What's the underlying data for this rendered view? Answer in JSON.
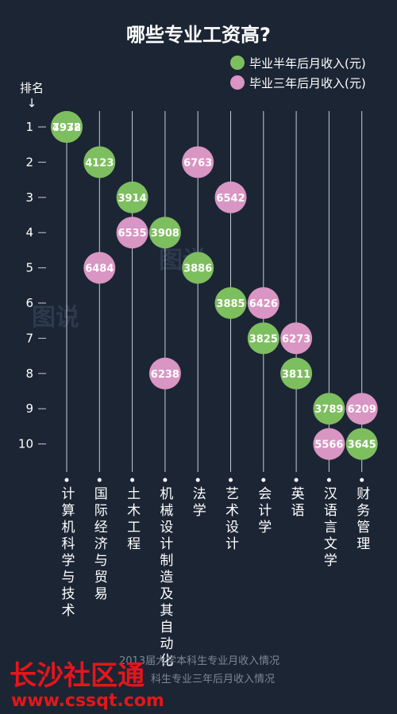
{
  "chart_data": {
    "type": "scatter",
    "title": "哪些专业工资高?",
    "rank_axis_label": "排名",
    "rank_axis_arrow": "↓",
    "ranks": [
      1,
      2,
      3,
      4,
      5,
      6,
      7,
      8,
      9,
      10
    ],
    "categories": [
      "计算机科学与技术",
      "国际经济与贸易",
      "土木工程",
      "机械设计制造及其自动化",
      "法学",
      "艺术设计",
      "会计学",
      "英语",
      "汉语言文学",
      "财务管理"
    ],
    "series": [
      {
        "name": "毕业半年后月收入(元)",
        "color": "#7dbe5f",
        "points": [
          {
            "category": "计算机科学与技术",
            "rank": 1,
            "value": 4978
          },
          {
            "category": "国际经济与贸易",
            "rank": 2,
            "value": 4123
          },
          {
            "category": "土木工程",
            "rank": 3,
            "value": 3914
          },
          {
            "category": "机械设计制造及其自动化",
            "rank": 4,
            "value": 3908
          },
          {
            "category": "法学",
            "rank": 5,
            "value": 3886
          },
          {
            "category": "艺术设计",
            "rank": 6,
            "value": 3885
          },
          {
            "category": "会计学",
            "rank": 7,
            "value": 3825
          },
          {
            "category": "英语",
            "rank": 8,
            "value": 3811
          },
          {
            "category": "汉语言文学",
            "rank": 9,
            "value": 3789
          },
          {
            "category": "财务管理",
            "rank": 10,
            "value": 3645
          }
        ]
      },
      {
        "name": "毕业三年后月收入(元)",
        "color": "#d995c3",
        "points": [
          {
            "category": "计算机科学与技术",
            "rank": 1,
            "value": 7932
          },
          {
            "category": "国际经济与贸易",
            "rank": 5,
            "value": 6484
          },
          {
            "category": "土木工程",
            "rank": 4,
            "value": 6535
          },
          {
            "category": "机械设计制造及其自动化",
            "rank": 8,
            "value": 6238
          },
          {
            "category": "法学",
            "rank": 2,
            "value": 6763
          },
          {
            "category": "艺术设计",
            "rank": 3,
            "value": 6542
          },
          {
            "category": "会计学",
            "rank": 6,
            "value": 6426
          },
          {
            "category": "英语",
            "rank": 7,
            "value": 6273
          },
          {
            "category": "汉语言文学",
            "rank": 10,
            "value": 5566
          },
          {
            "category": "财务管理",
            "rank": 9,
            "value": 6209
          }
        ]
      }
    ],
    "legend_position": "top-right",
    "grid": false
  },
  "footer": {
    "line1": "2013届大学本科生专业月收入情况",
    "line2": "科生专业三年后月收入情况"
  },
  "watermark": {
    "site_name": "长沙社区通",
    "site_url": "www.cssqt.com",
    "mark_text": "图说"
  }
}
